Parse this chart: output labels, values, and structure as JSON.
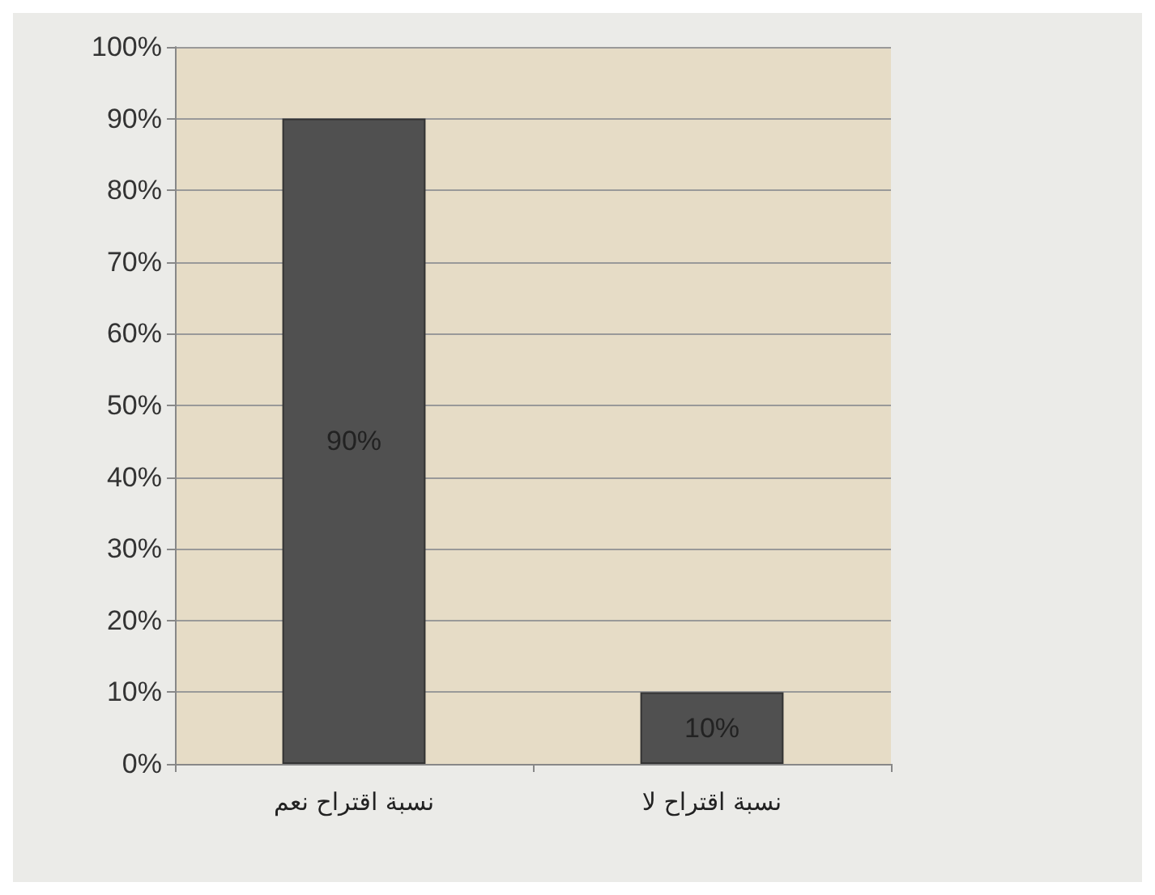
{
  "chart_data": {
    "type": "bar",
    "categories": [
      "نسبة اقتراح نعم",
      "نسبة اقتراح لا"
    ],
    "values": [
      90,
      10
    ],
    "color": "#505050",
    "value_labels": [
      "90%",
      "10%"
    ],
    "ylim": [
      0,
      100
    ],
    "yticks": [
      {
        "value": 0,
        "label": "0%"
      },
      {
        "value": 10,
        "label": "10%"
      },
      {
        "value": 20,
        "label": "20%"
      },
      {
        "value": 30,
        "label": "30%"
      },
      {
        "value": 40,
        "label": "40%"
      },
      {
        "value": 50,
        "label": "50%"
      },
      {
        "value": 60,
        "label": "60%"
      },
      {
        "value": 70,
        "label": "70%"
      },
      {
        "value": 80,
        "label": "80%"
      },
      {
        "value": 90,
        "label": "90%"
      },
      {
        "value": 100,
        "label": "100%"
      }
    ],
    "grid": "y"
  }
}
